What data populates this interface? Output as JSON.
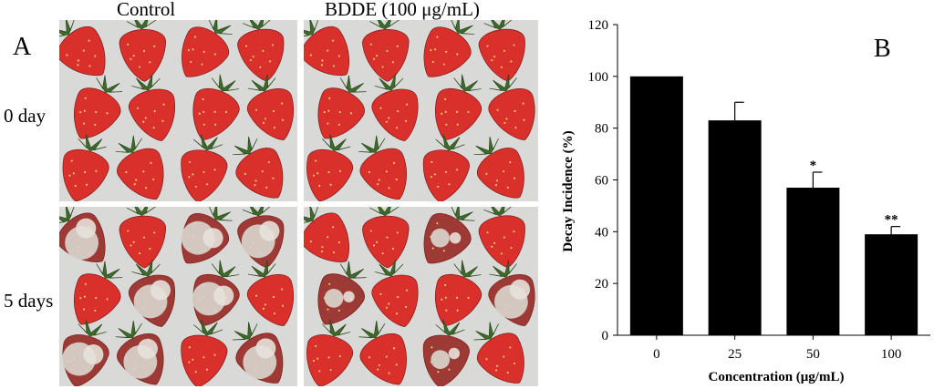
{
  "panel_a": {
    "label": "A",
    "columns": [
      "Control",
      "BDDE (100 μg/mL)"
    ],
    "rows": [
      "0 day",
      "5 days"
    ]
  },
  "panel_b": {
    "label": "B"
  },
  "chart_data": {
    "type": "bar",
    "categories": [
      "0",
      "25",
      "50",
      "100"
    ],
    "values": [
      100,
      83,
      57,
      39
    ],
    "errors": [
      0,
      7,
      6,
      3
    ],
    "significance": [
      "",
      "",
      "*",
      "**"
    ],
    "xlabel": "Concentration (μg/mL)",
    "ylabel": "Decay Incidence (%)",
    "ylim": [
      0,
      120
    ],
    "yticks": [
      0,
      20,
      40,
      60,
      80,
      100,
      120
    ],
    "bar_color": "#000000",
    "grid": false
  },
  "colors": {
    "fresh_berry": "#d9302c",
    "decayed_berry": "#9e3a36",
    "mold": "#d8d4cc",
    "leaf": "#3f6b2a",
    "background": "#d9d9d7"
  }
}
